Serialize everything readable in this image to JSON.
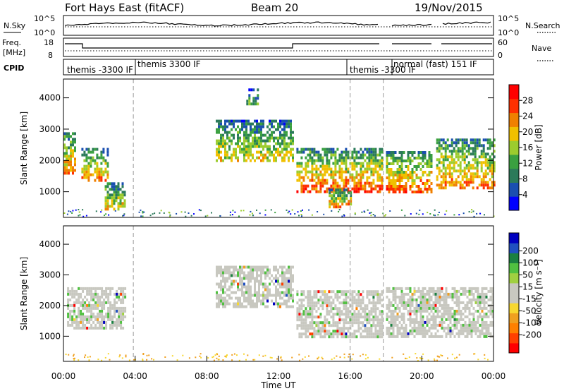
{
  "header": {
    "station": "Fort Hays East (fitACF)",
    "beam": "Beam 20",
    "date": "19/Nov/2015"
  },
  "side_labels": {
    "nsky": "N.Sky",
    "freq_line1": "Freq.",
    "freq_line2": "[MHz]",
    "cpid": "CPID",
    "nsearch": "N.Search",
    "nave": "Nave"
  },
  "noise_panel": {
    "left_ticks": [
      "10^5",
      "10^0"
    ],
    "right_ticks": [
      "10^5",
      "10^0"
    ]
  },
  "freq_panel": {
    "left_ticks": [
      "18",
      "8"
    ],
    "right_ticks": [
      "60",
      "0"
    ]
  },
  "cpid_labels": [
    "themis -3300 IF",
    "themis 3300 IF",
    "themis -3300 IF",
    "normal (fast) 151 IF"
  ],
  "colors": {
    "power": [
      "#0000ff",
      "#1a4fb0",
      "#2b7a5a",
      "#3aa040",
      "#9ccc2e",
      "#f0c000",
      "#f08000",
      "#ff3000",
      "#ff0000"
    ],
    "velocity": [
      "#ff0000",
      "#ff4000",
      "#ff8000",
      "#f0a020",
      "#f8d830",
      "#c8c8c0",
      "#c8c8c0",
      "#a0d040",
      "#50c040",
      "#1a8040",
      "#2050c0",
      "#0000c0"
    ],
    "ground_scatter": "#c8c8c0"
  },
  "chart_data": [
    {
      "type": "heatmap",
      "panel": "power",
      "ylabel": "Slant Range [km]",
      "ylim": [
        180,
        4600
      ],
      "yticks": [
        1000,
        2000,
        3000,
        4000
      ],
      "xlim": [
        0,
        24
      ],
      "colorbar": {
        "label": "Power [dB]",
        "ticks": [
          4,
          8,
          12,
          16,
          20,
          24,
          28
        ],
        "range": [
          0,
          32
        ]
      },
      "cpid_change_hours": [
        3.9,
        16.0,
        17.85
      ],
      "scatter_regions": [
        {
          "t0": 0.0,
          "t1": 0.6,
          "r0": 1600,
          "r1": 2900,
          "peak": 28
        },
        {
          "t0": 1.0,
          "t1": 2.5,
          "r0": 1400,
          "r1": 2400,
          "peak": 26
        },
        {
          "t0": 2.3,
          "t1": 3.4,
          "r0": 400,
          "r1": 1300,
          "peak": 24
        },
        {
          "t0": 8.5,
          "t1": 12.8,
          "r0": 2000,
          "r1": 3300,
          "peak": 22
        },
        {
          "t0": 13.0,
          "t1": 17.8,
          "r0": 1000,
          "r1": 2400,
          "peak": 30
        },
        {
          "t0": 14.8,
          "t1": 16.0,
          "r0": 500,
          "r1": 1100,
          "peak": 28
        },
        {
          "t0": 18.0,
          "t1": 20.5,
          "r0": 1000,
          "r1": 2300,
          "peak": 30
        },
        {
          "t0": 20.8,
          "t1": 24.0,
          "r0": 1100,
          "r1": 2700,
          "peak": 28
        },
        {
          "t0": 10.2,
          "t1": 10.8,
          "r0": 3800,
          "r1": 4300,
          "peak": 16
        }
      ]
    },
    {
      "type": "heatmap",
      "panel": "velocity",
      "ylabel": "Slant Range [km]",
      "ylim": [
        180,
        4600
      ],
      "yticks": [
        1000,
        2000,
        3000,
        4000
      ],
      "xlim": [
        0,
        24
      ],
      "xticks": [
        "00:00",
        "04:00",
        "08:00",
        "12:00",
        "16:00",
        "20:00",
        "00:00"
      ],
      "xlabel": "Time UT",
      "colorbar": {
        "label": "Velocity [m s⁻¹]",
        "ticks": [
          -200,
          -100,
          -50,
          -15,
          15,
          50,
          100,
          200
        ]
      },
      "ground_scatter_regions": [
        {
          "t0": 0.2,
          "t1": 3.5,
          "r0": 1300,
          "r1": 2600
        },
        {
          "t0": 8.5,
          "t1": 12.8,
          "r0": 2000,
          "r1": 3300
        },
        {
          "t0": 13.0,
          "t1": 17.8,
          "r0": 1000,
          "r1": 2500
        },
        {
          "t0": 18.0,
          "t1": 24.0,
          "r0": 1000,
          "r1": 2600
        }
      ]
    }
  ]
}
